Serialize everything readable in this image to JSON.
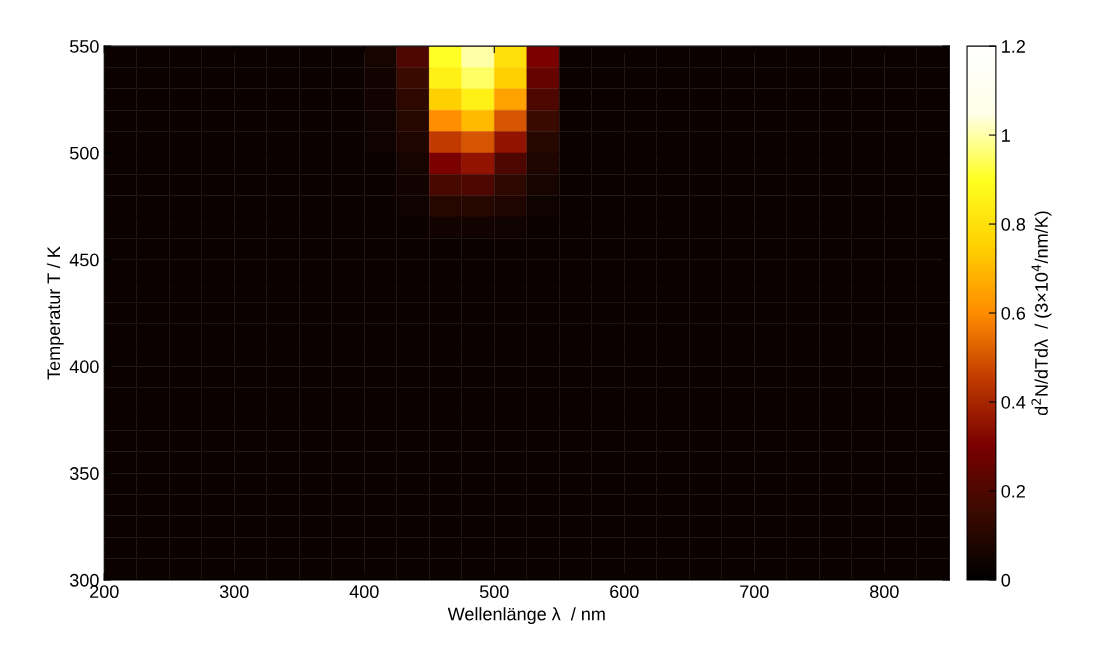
{
  "chart_data": {
    "type": "heatmap",
    "xlabel": "Wellenlänge λ  / nm",
    "ylabel": "Temperatur T / K",
    "clabel": "d$^{2}$N/dTdλ  / (3×10$^{4}$/nm/K)",
    "x": [
      212.5,
      237.5,
      262.5,
      287.5,
      312.5,
      337.5,
      362.5,
      387.5,
      412.5,
      437.5,
      462.5,
      487.5,
      512.5,
      537.5,
      562.5,
      587.5,
      612.5,
      637.5,
      662.5,
      687.5,
      712.5,
      737.5,
      762.5,
      787.5,
      812.5,
      837.5
    ],
    "xlim": [
      200,
      850
    ],
    "ylim": [
      300,
      550
    ],
    "xticks": [
      200,
      300,
      400,
      500,
      600,
      700,
      800
    ],
    "yticks": [
      300,
      350,
      400,
      450,
      500,
      550
    ],
    "clim": [
      0,
      1.2
    ],
    "cticks": [
      0,
      0.2,
      0.4,
      0.6,
      0.8,
      1,
      1.2
    ],
    "cells": [
      [
        0.03,
        0.03,
        0.03,
        0.03,
        0.03,
        0.03,
        0.03,
        0.03,
        0.06,
        0.2,
        0.9,
        1.0,
        0.8,
        0.3,
        0.03,
        0.03,
        0.03,
        0.03,
        0.03,
        0.03,
        0.03,
        0.03,
        0.03,
        0.03,
        0.03,
        0.03
      ],
      [
        0.03,
        0.03,
        0.03,
        0.03,
        0.03,
        0.03,
        0.03,
        0.03,
        0.05,
        0.15,
        0.85,
        0.95,
        0.75,
        0.25,
        0.03,
        0.03,
        0.03,
        0.03,
        0.03,
        0.03,
        0.03,
        0.03,
        0.03,
        0.03,
        0.03,
        0.03
      ],
      [
        0.03,
        0.03,
        0.03,
        0.03,
        0.03,
        0.03,
        0.03,
        0.03,
        0.05,
        0.12,
        0.75,
        0.85,
        0.65,
        0.2,
        0.03,
        0.03,
        0.03,
        0.03,
        0.03,
        0.03,
        0.03,
        0.03,
        0.03,
        0.03,
        0.03,
        0.03
      ],
      [
        0.03,
        0.03,
        0.03,
        0.03,
        0.03,
        0.03,
        0.03,
        0.03,
        0.04,
        0.1,
        0.6,
        0.7,
        0.5,
        0.15,
        0.03,
        0.03,
        0.03,
        0.03,
        0.03,
        0.03,
        0.03,
        0.03,
        0.03,
        0.03,
        0.03,
        0.03
      ],
      [
        0.03,
        0.03,
        0.03,
        0.03,
        0.03,
        0.03,
        0.03,
        0.03,
        0.04,
        0.08,
        0.45,
        0.5,
        0.35,
        0.1,
        0.03,
        0.03,
        0.03,
        0.03,
        0.03,
        0.03,
        0.03,
        0.03,
        0.03,
        0.03,
        0.03,
        0.03
      ],
      [
        0.03,
        0.03,
        0.03,
        0.03,
        0.03,
        0.03,
        0.03,
        0.03,
        0.03,
        0.06,
        0.3,
        0.35,
        0.2,
        0.08,
        0.03,
        0.03,
        0.03,
        0.03,
        0.03,
        0.03,
        0.03,
        0.03,
        0.03,
        0.03,
        0.03,
        0.03
      ],
      [
        0.03,
        0.03,
        0.03,
        0.03,
        0.03,
        0.03,
        0.03,
        0.03,
        0.03,
        0.05,
        0.18,
        0.2,
        0.12,
        0.06,
        0.03,
        0.03,
        0.03,
        0.03,
        0.03,
        0.03,
        0.03,
        0.03,
        0.03,
        0.03,
        0.03,
        0.03
      ],
      [
        0.03,
        0.03,
        0.03,
        0.03,
        0.03,
        0.03,
        0.03,
        0.03,
        0.03,
        0.04,
        0.1,
        0.1,
        0.08,
        0.04,
        0.03,
        0.03,
        0.03,
        0.03,
        0.03,
        0.03,
        0.03,
        0.03,
        0.03,
        0.03,
        0.03,
        0.03
      ],
      [
        0.03,
        0.03,
        0.03,
        0.03,
        0.03,
        0.03,
        0.03,
        0.03,
        0.03,
        0.03,
        0.05,
        0.05,
        0.04,
        0.03,
        0.03,
        0.03,
        0.03,
        0.03,
        0.03,
        0.03,
        0.03,
        0.03,
        0.03,
        0.03,
        0.03,
        0.03
      ],
      [
        0.03,
        0.03,
        0.03,
        0.03,
        0.03,
        0.03,
        0.03,
        0.03,
        0.03,
        0.03,
        0.03,
        0.03,
        0.03,
        0.03,
        0.03,
        0.03,
        0.03,
        0.03,
        0.03,
        0.03,
        0.03,
        0.03,
        0.03,
        0.03,
        0.03,
        0.03
      ],
      [
        0.03,
        0.03,
        0.03,
        0.03,
        0.03,
        0.03,
        0.03,
        0.03,
        0.03,
        0.03,
        0.03,
        0.03,
        0.03,
        0.03,
        0.03,
        0.03,
        0.03,
        0.03,
        0.03,
        0.03,
        0.03,
        0.03,
        0.03,
        0.03,
        0.03,
        0.03
      ],
      [
        0.03,
        0.03,
        0.03,
        0.03,
        0.03,
        0.03,
        0.03,
        0.03,
        0.03,
        0.03,
        0.03,
        0.03,
        0.03,
        0.03,
        0.03,
        0.03,
        0.03,
        0.03,
        0.03,
        0.03,
        0.03,
        0.03,
        0.03,
        0.03,
        0.03,
        0.03
      ],
      [
        0.03,
        0.03,
        0.03,
        0.03,
        0.03,
        0.03,
        0.03,
        0.03,
        0.03,
        0.03,
        0.03,
        0.03,
        0.03,
        0.03,
        0.03,
        0.03,
        0.03,
        0.03,
        0.03,
        0.03,
        0.03,
        0.03,
        0.03,
        0.03,
        0.03,
        0.03
      ],
      [
        0.03,
        0.03,
        0.03,
        0.03,
        0.03,
        0.03,
        0.03,
        0.03,
        0.03,
        0.03,
        0.03,
        0.03,
        0.03,
        0.03,
        0.03,
        0.03,
        0.03,
        0.03,
        0.03,
        0.03,
        0.03,
        0.03,
        0.03,
        0.03,
        0.03,
        0.03
      ],
      [
        0.03,
        0.03,
        0.03,
        0.03,
        0.03,
        0.03,
        0.03,
        0.03,
        0.03,
        0.03,
        0.03,
        0.03,
        0.03,
        0.03,
        0.03,
        0.03,
        0.03,
        0.03,
        0.03,
        0.03,
        0.03,
        0.03,
        0.03,
        0.03,
        0.03,
        0.03
      ],
      [
        0.03,
        0.03,
        0.03,
        0.03,
        0.03,
        0.03,
        0.03,
        0.03,
        0.03,
        0.03,
        0.03,
        0.03,
        0.03,
        0.03,
        0.03,
        0.03,
        0.03,
        0.03,
        0.03,
        0.03,
        0.03,
        0.03,
        0.03,
        0.03,
        0.03,
        0.03
      ],
      [
        0.03,
        0.03,
        0.03,
        0.03,
        0.03,
        0.03,
        0.03,
        0.03,
        0.03,
        0.03,
        0.03,
        0.03,
        0.03,
        0.03,
        0.03,
        0.03,
        0.03,
        0.03,
        0.03,
        0.03,
        0.03,
        0.03,
        0.03,
        0.03,
        0.03,
        0.03
      ],
      [
        0.03,
        0.03,
        0.03,
        0.03,
        0.03,
        0.03,
        0.03,
        0.03,
        0.03,
        0.03,
        0.03,
        0.03,
        0.03,
        0.03,
        0.03,
        0.03,
        0.03,
        0.03,
        0.03,
        0.03,
        0.03,
        0.03,
        0.03,
        0.03,
        0.03,
        0.03
      ],
      [
        0.03,
        0.03,
        0.03,
        0.03,
        0.03,
        0.03,
        0.03,
        0.03,
        0.03,
        0.03,
        0.03,
        0.03,
        0.03,
        0.03,
        0.03,
        0.03,
        0.03,
        0.03,
        0.03,
        0.03,
        0.03,
        0.03,
        0.03,
        0.03,
        0.03,
        0.03
      ],
      [
        0.03,
        0.03,
        0.03,
        0.03,
        0.03,
        0.03,
        0.03,
        0.03,
        0.03,
        0.03,
        0.03,
        0.03,
        0.03,
        0.03,
        0.03,
        0.03,
        0.03,
        0.03,
        0.03,
        0.03,
        0.03,
        0.03,
        0.03,
        0.03,
        0.03,
        0.03
      ],
      [
        0.03,
        0.03,
        0.03,
        0.03,
        0.03,
        0.03,
        0.03,
        0.03,
        0.03,
        0.03,
        0.03,
        0.03,
        0.03,
        0.03,
        0.03,
        0.03,
        0.03,
        0.03,
        0.03,
        0.03,
        0.03,
        0.03,
        0.03,
        0.03,
        0.03,
        0.03
      ],
      [
        0.03,
        0.03,
        0.03,
        0.03,
        0.03,
        0.03,
        0.03,
        0.03,
        0.03,
        0.03,
        0.03,
        0.03,
        0.03,
        0.03,
        0.03,
        0.03,
        0.03,
        0.03,
        0.03,
        0.03,
        0.03,
        0.03,
        0.03,
        0.03,
        0.03,
        0.03
      ],
      [
        0.03,
        0.03,
        0.03,
        0.03,
        0.03,
        0.03,
        0.03,
        0.03,
        0.03,
        0.03,
        0.03,
        0.03,
        0.03,
        0.03,
        0.03,
        0.03,
        0.03,
        0.03,
        0.03,
        0.03,
        0.03,
        0.03,
        0.03,
        0.03,
        0.03,
        0.03
      ],
      [
        0.03,
        0.03,
        0.03,
        0.03,
        0.03,
        0.03,
        0.03,
        0.03,
        0.03,
        0.03,
        0.03,
        0.03,
        0.03,
        0.03,
        0.03,
        0.03,
        0.03,
        0.03,
        0.03,
        0.03,
        0.03,
        0.03,
        0.03,
        0.03,
        0.03,
        0.03
      ],
      [
        0.03,
        0.03,
        0.03,
        0.03,
        0.03,
        0.03,
        0.03,
        0.03,
        0.03,
        0.03,
        0.03,
        0.03,
        0.03,
        0.03,
        0.03,
        0.03,
        0.03,
        0.03,
        0.03,
        0.03,
        0.03,
        0.03,
        0.03,
        0.03,
        0.03,
        0.03
      ]
    ]
  }
}
